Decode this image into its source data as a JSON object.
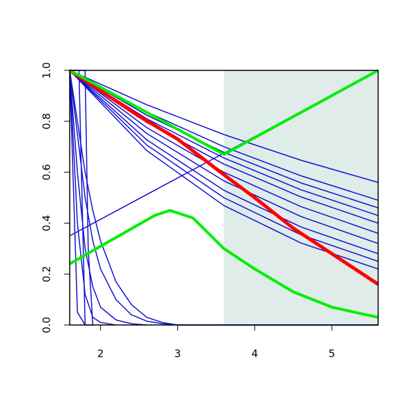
{
  "chart_data": {
    "type": "line",
    "xlim": [
      1.6,
      5.6
    ],
    "ylim": [
      0,
      1
    ],
    "xticks": [
      2,
      3,
      4,
      5
    ],
    "yticks": [
      {
        "value": 0,
        "label": "0.0"
      },
      {
        "value": 0.2,
        "label": "0.2"
      },
      {
        "value": 0.4,
        "label": "0.4"
      },
      {
        "value": 0.6,
        "label": "0.6"
      },
      {
        "value": 0.8,
        "label": "0.8"
      },
      {
        "value": 1,
        "label": "1.0"
      }
    ],
    "shaded_x": [
      3.6,
      5.6
    ],
    "shade_color": "#dfecea",
    "series": [
      {
        "color": "#1010d0",
        "width": 1.5,
        "x": [
          1.6,
          2.6,
          3.6,
          4.6,
          5.6
        ],
        "values": [
          1,
          0.865,
          0.748,
          0.647,
          0.56
        ]
      },
      {
        "color": "#1010d0",
        "width": 1.5,
        "x": [
          1.6,
          2.6,
          3.6,
          4.6,
          5.6
        ],
        "values": [
          1,
          0.837,
          0.7,
          0.586,
          0.49
        ]
      },
      {
        "color": "#1010d0",
        "width": 1.5,
        "x": [
          1.6,
          2.6,
          3.6,
          4.6,
          5.6
        ],
        "values": [
          1,
          0.824,
          0.678,
          0.558,
          0.46
        ]
      },
      {
        "color": "#1010d0",
        "width": 1.5,
        "x": [
          1.6,
          2.6,
          3.6,
          4.6,
          5.6
        ],
        "values": [
          1,
          0.81,
          0.656,
          0.531,
          0.43
        ]
      },
      {
        "color": "#1010d0",
        "width": 1.5,
        "x": [
          1.6,
          2.6,
          3.6,
          4.6,
          5.6
        ],
        "values": [
          1,
          0.795,
          0.632,
          0.503,
          0.4
        ]
      },
      {
        "color": "#1010d0",
        "width": 1.5,
        "x": [
          1.6,
          2.6,
          3.6,
          4.6,
          5.6
        ],
        "values": [
          1,
          0.775,
          0.6,
          0.465,
          0.36
        ]
      },
      {
        "color": "#1010d0",
        "width": 1.5,
        "x": [
          1.6,
          2.6,
          3.6,
          4.6,
          5.6
        ],
        "values": [
          1,
          0.752,
          0.566,
          0.426,
          0.32
        ]
      },
      {
        "color": "#1010d0",
        "width": 1.5,
        "x": [
          1.6,
          2.6,
          3.6,
          4.6,
          5.6
        ],
        "values": [
          1,
          0.727,
          0.529,
          0.385,
          0.28
        ]
      },
      {
        "color": "#1010d0",
        "width": 1.5,
        "x": [
          1.6,
          2.6,
          3.6,
          4.6,
          5.6
        ],
        "values": [
          1,
          0.707,
          0.5,
          0.354,
          0.25
        ]
      },
      {
        "color": "#1010d0",
        "width": 1.5,
        "x": [
          1.6,
          2.6,
          3.6,
          4.6,
          5.6
        ],
        "values": [
          1,
          0.685,
          0.469,
          0.322,
          0.22
        ]
      },
      {
        "color": "#1010d0",
        "width": 1.5,
        "x": [
          1.6,
          5.6
        ],
        "values": [
          0.35,
          1
        ]
      },
      {
        "color": "#1010d0",
        "width": 1.5,
        "x": [
          1.6,
          1.7,
          1.8,
          1.9
        ],
        "values": [
          1,
          0.05,
          0,
          0
        ]
      },
      {
        "color": "#1010d0",
        "width": 1.5,
        "x": [
          1.6,
          1.7,
          1.8,
          1.9,
          2.0,
          2.2
        ],
        "values": [
          1,
          0.4,
          0.12,
          0.03,
          0.01,
          0
        ]
      },
      {
        "color": "#1010d0",
        "width": 1.5,
        "x": [
          1.6,
          1.7,
          1.8,
          1.9,
          2.0,
          2.2,
          2.4,
          2.6
        ],
        "values": [
          1,
          0.6,
          0.3,
          0.15,
          0.07,
          0.02,
          0.005,
          0
        ]
      },
      {
        "color": "#1010d0",
        "width": 1.5,
        "x": [
          1.6,
          1.7,
          1.8,
          1.9,
          2.0,
          2.2,
          2.4,
          2.6,
          2.8,
          3.0,
          5.6
        ],
        "values": [
          1,
          0.75,
          0.5,
          0.33,
          0.22,
          0.1,
          0.04,
          0.015,
          0.005,
          0,
          0
        ]
      },
      {
        "color": "#1010d0",
        "width": 1.5,
        "x": [
          1.6,
          1.7,
          1.8,
          1.9,
          2.0,
          2.2,
          2.4,
          2.6,
          2.8,
          3.0,
          5.6
        ],
        "values": [
          1,
          0.8,
          0.6,
          0.45,
          0.33,
          0.17,
          0.08,
          0.03,
          0.01,
          0,
          0
        ]
      },
      {
        "color": "#1010d0",
        "width": 1.5,
        "x": [
          1.6,
          1.72,
          1.76,
          1.8
        ],
        "values": [
          1,
          1,
          0.5,
          0
        ]
      },
      {
        "color": "#1010d0",
        "width": 1.5,
        "x": [
          1.6,
          1.8,
          1.84,
          1.9
        ],
        "values": [
          1,
          1,
          0.3,
          0
        ]
      },
      {
        "color": "#ff0000",
        "width": 5,
        "x": [
          1.6,
          2.0,
          2.5,
          3.0,
          3.6,
          4.0,
          4.5,
          5.0,
          5.6
        ],
        "values": [
          1,
          0.92,
          0.82,
          0.73,
          0.59,
          0.5,
          0.38,
          0.28,
          0.16
        ]
      },
      {
        "color": "#00ee00",
        "width": 4,
        "x": [
          1.6,
          3.6,
          5.6
        ],
        "values": [
          1,
          0.67,
          1
        ]
      },
      {
        "color": "#00ee00",
        "width": 4,
        "x": [
          1.6,
          2.7,
          2.8,
          2.9,
          3.0,
          3.2,
          3.6,
          4.0,
          4.5,
          5.0,
          5.6
        ],
        "values": [
          0.24,
          0.43,
          0.44,
          0.45,
          0.44,
          0.42,
          0.3,
          0.22,
          0.13,
          0.07,
          0.03
        ]
      }
    ]
  }
}
